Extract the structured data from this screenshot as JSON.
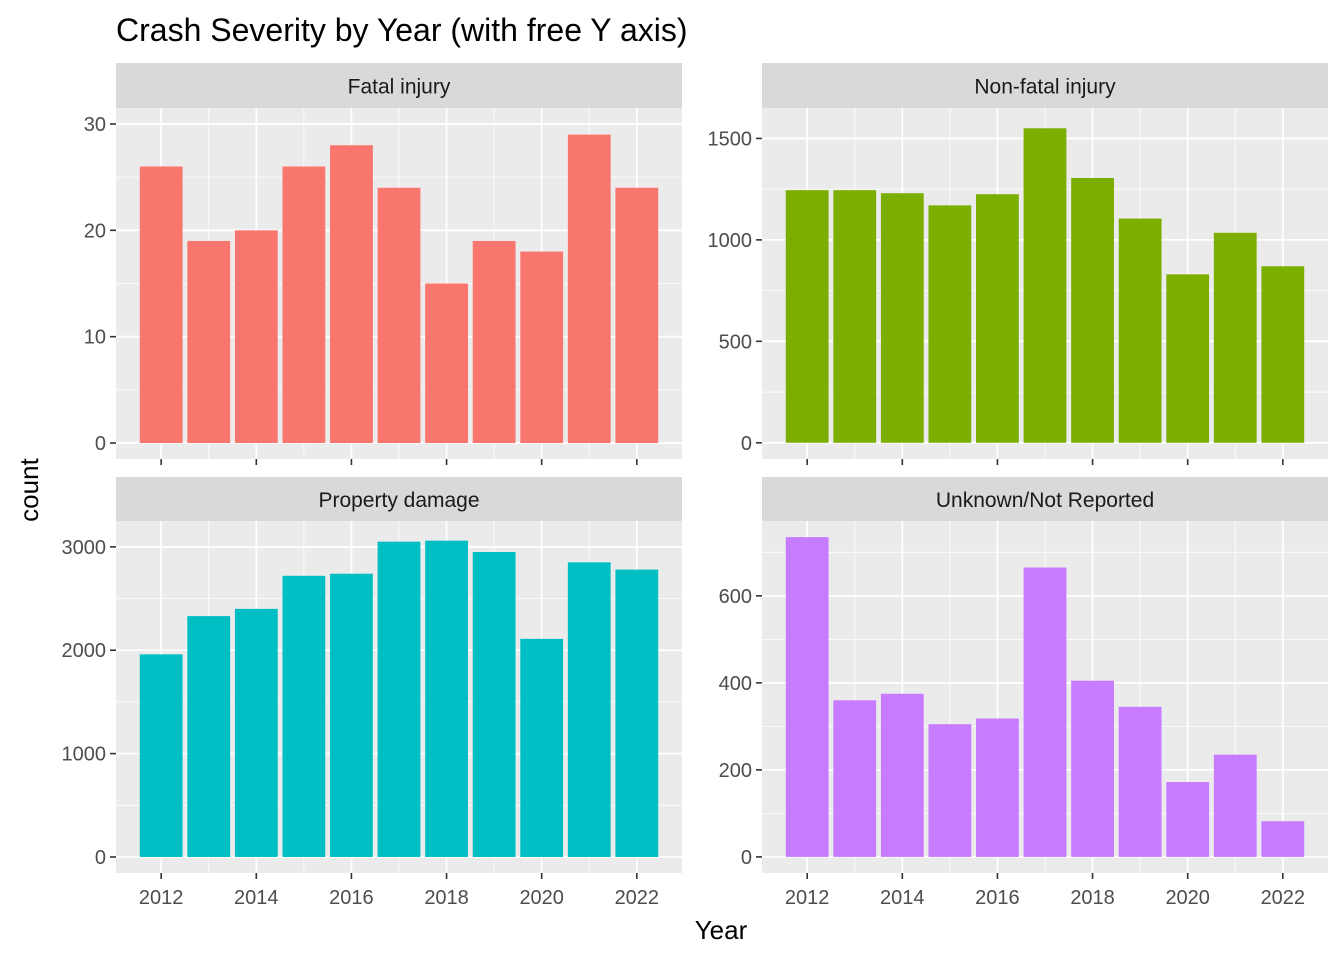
{
  "chart_data": {
    "type": "bar",
    "title": "Crash Severity by Year (with free Y axis)",
    "xlabel": "Year",
    "ylabel": "count",
    "categories": [
      "2012",
      "2013",
      "2014",
      "2015",
      "2016",
      "2017",
      "2018",
      "2019",
      "2020",
      "2021",
      "2022"
    ],
    "x_tick_labels": [
      "2012",
      "2014",
      "2016",
      "2018",
      "2020",
      "2022"
    ],
    "grid": true,
    "legend": "none",
    "facets": [
      {
        "name": "Fatal injury",
        "color": "#F8766D",
        "values": [
          26,
          19,
          20,
          26,
          28,
          24,
          15,
          19,
          18,
          29,
          24
        ],
        "ylim": [
          -1.5,
          31.5
        ],
        "y_ticks": [
          0,
          10,
          20,
          30
        ],
        "show_x_labels": false
      },
      {
        "name": "Non-fatal injury",
        "color": "#7CAE00",
        "values": [
          1245,
          1245,
          1230,
          1170,
          1225,
          1550,
          1305,
          1105,
          830,
          1035,
          870
        ],
        "ylim": [
          -80,
          1650
        ],
        "y_ticks": [
          0,
          500,
          1000,
          1500
        ],
        "show_x_labels": false
      },
      {
        "name": "Property damage",
        "color": "#00BFC4",
        "values": [
          1960,
          2330,
          2400,
          2720,
          2740,
          3050,
          3060,
          2950,
          2110,
          2850,
          2780
        ],
        "ylim": [
          -155,
          3250
        ],
        "y_ticks": [
          0,
          1000,
          2000,
          3000
        ],
        "show_x_labels": true
      },
      {
        "name": "Unknown/Not Reported",
        "color": "#C77CFF",
        "values": [
          735,
          360,
          375,
          305,
          318,
          665,
          405,
          345,
          172,
          235,
          82
        ],
        "ylim": [
          -37,
          772
        ],
        "y_ticks": [
          0,
          200,
          400,
          600
        ],
        "show_x_labels": true
      }
    ]
  }
}
